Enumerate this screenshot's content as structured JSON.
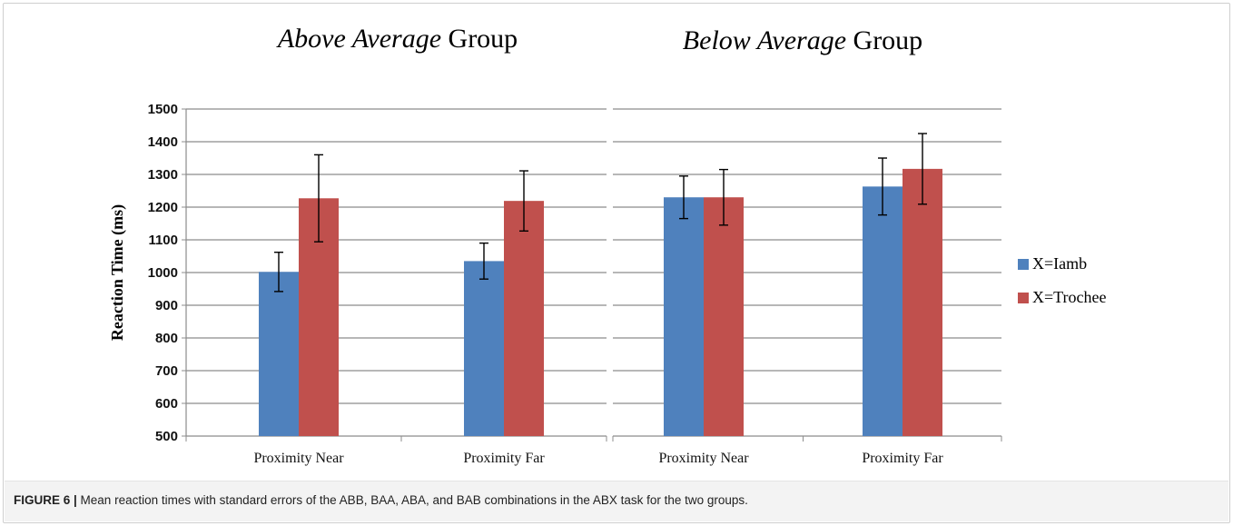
{
  "caption": {
    "label": "FIGURE 6 |",
    "text": " Mean reaction times with standard errors of the ABB, BAA, ABA, and BAB combinations in the ABX task for the two groups."
  },
  "colors": {
    "series_1": "#4f81bd",
    "series_2": "#c0504d",
    "grid": "#8c8c8c",
    "axis": "#8c8c8c",
    "error_bar": "#000000"
  },
  "chart_data": [
    {
      "type": "bar",
      "title_italic": "Above Average",
      "title_rest": " Group",
      "ylabel": "Reaction Time (ms)",
      "xlabel": "",
      "ylim": [
        500,
        1500
      ],
      "ytick_step": 100,
      "grid": true,
      "categories": [
        "Proximity Near",
        "Proximity Far"
      ],
      "series": [
        {
          "name": "X=Iamb",
          "values": [
            1002,
            1035
          ],
          "errors": [
            60,
            55
          ]
        },
        {
          "name": "X=Trochee",
          "values": [
            1227,
            1219
          ],
          "errors": [
            133,
            92
          ]
        }
      ]
    },
    {
      "type": "bar",
      "title_italic": "Below Average",
      "title_rest": " Group",
      "ylabel": "",
      "xlabel": "",
      "ylim": [
        500,
        1500
      ],
      "ytick_step": 100,
      "grid": true,
      "legend_position": "right",
      "categories": [
        "Proximity Near",
        "Proximity Far"
      ],
      "series": [
        {
          "name": "X=Iamb",
          "values": [
            1230,
            1263
          ],
          "errors": [
            65,
            87
          ]
        },
        {
          "name": "X=Trochee",
          "values": [
            1230,
            1317
          ],
          "errors": [
            85,
            108
          ]
        }
      ]
    }
  ]
}
